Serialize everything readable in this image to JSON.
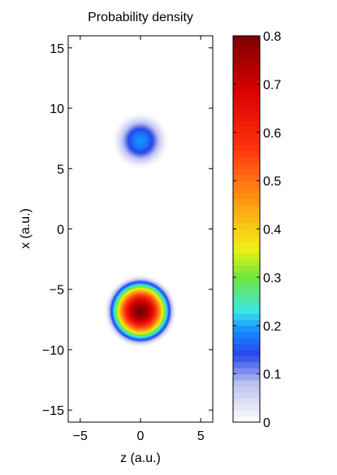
{
  "chart_data": {
    "type": "heatmap",
    "title": "Probability density",
    "xlabel": "z (a.u.)",
    "ylabel": "x (a.u.)",
    "xlim": [
      -6,
      6
    ],
    "ylim": [
      -16,
      16
    ],
    "x_ticks": [
      -5,
      0,
      5
    ],
    "y_ticks": [
      -15,
      -10,
      -5,
      0,
      5,
      10,
      15
    ],
    "colormap": "jet-like (white at 0)",
    "colorbar": {
      "lim": [
        0,
        0.8
      ],
      "ticks": [
        0,
        0.1,
        0.2,
        0.3,
        0.4,
        0.5,
        0.6,
        0.7,
        0.8
      ]
    },
    "blobs": [
      {
        "z_center": 0,
        "x_center": 7.3,
        "peak": 0.19,
        "radius": 2.3
      },
      {
        "z_center": 0,
        "x_center": -6.8,
        "peak": 0.8,
        "radius": 3.0
      }
    ]
  },
  "x_tick_labels": [
    "−5",
    "0",
    "5"
  ],
  "y_tick_labels": [
    "−15",
    "−10",
    "−5",
    "0",
    "5",
    "10",
    "15"
  ],
  "cb_tick_labels": [
    "0",
    "0.1",
    "0.2",
    "0.3",
    "0.4",
    "0.5",
    "0.6",
    "0.7",
    "0.8"
  ]
}
